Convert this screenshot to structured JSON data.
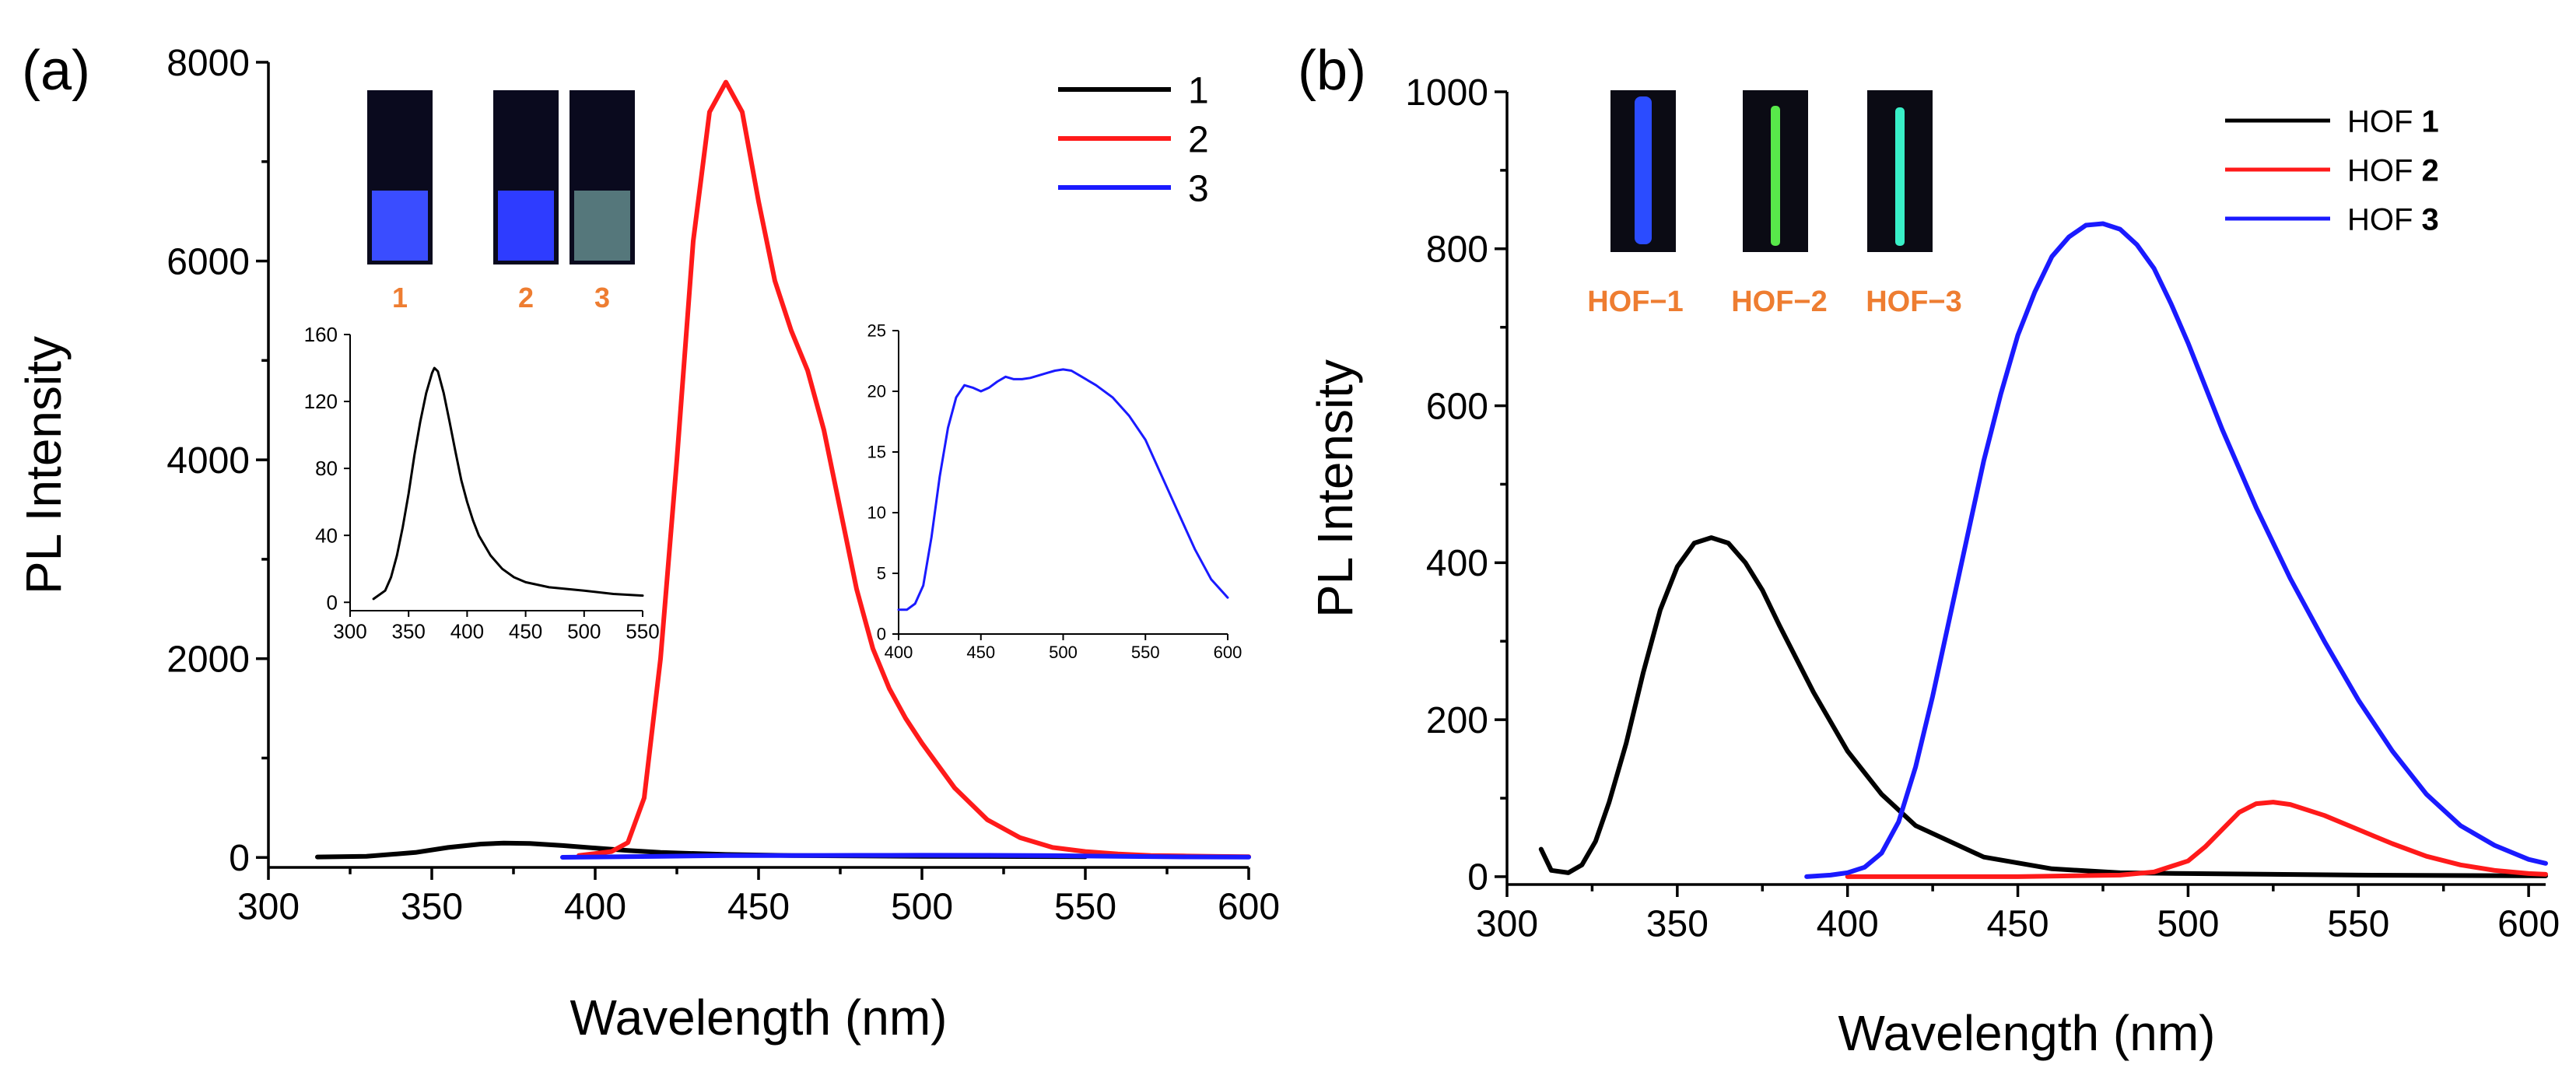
{
  "colors": {
    "black": "#000000",
    "red": "#ff1a1a",
    "blue": "#1a1aff",
    "orange": "#ee7d31"
  },
  "panel_a": {
    "label": "(a)",
    "photo_labels": [
      "1",
      "2",
      "3"
    ],
    "photo_colors": [
      "#3a4dff",
      "#2e3cff",
      "#9fe3d8"
    ]
  },
  "panel_b": {
    "label": "(b)",
    "photo_labels": [
      "HOF−1",
      "HOF−2",
      "HOF−3"
    ],
    "photo_colors": [
      "#2b4cff",
      "#58e84a",
      "#39f0c8"
    ]
  },
  "chart_data": [
    {
      "id": "a_main",
      "type": "line",
      "xlabel": "Wavelength (nm)",
      "ylabel": "PL Intensity",
      "xlim": [
        300,
        600
      ],
      "ylim": [
        -100,
        8000
      ],
      "xticks": [
        300,
        350,
        400,
        450,
        500,
        550,
        600
      ],
      "yticks": [
        0,
        2000,
        4000,
        6000,
        8000
      ],
      "legend": "top-right",
      "series": [
        {
          "name": "1",
          "color": "#000000",
          "x": [
            315,
            330,
            345,
            355,
            365,
            372,
            380,
            390,
            400,
            410,
            420,
            440,
            460,
            480,
            500,
            520,
            550
          ],
          "y": [
            5,
            12,
            50,
            100,
            135,
            145,
            140,
            120,
            95,
            70,
            50,
            30,
            20,
            15,
            12,
            10,
            8
          ]
        },
        {
          "name": "2",
          "color": "#ff1a1a",
          "x": [
            395,
            405,
            410,
            415,
            420,
            425,
            430,
            435,
            440,
            445,
            450,
            455,
            460,
            465,
            470,
            475,
            480,
            485,
            490,
            495,
            500,
            510,
            520,
            530,
            540,
            550,
            560,
            570,
            580,
            590,
            600
          ],
          "y": [
            20,
            60,
            150,
            600,
            2000,
            4000,
            6200,
            7500,
            7800,
            7500,
            6600,
            5800,
            5300,
            4900,
            4300,
            3500,
            2700,
            2100,
            1700,
            1400,
            1150,
            700,
            380,
            200,
            100,
            60,
            35,
            20,
            15,
            10,
            8
          ]
        },
        {
          "name": "3",
          "color": "#1a1aff",
          "x": [
            390,
            400,
            420,
            440,
            460,
            480,
            500,
            520,
            540,
            560,
            580,
            600
          ],
          "y": [
            2,
            5,
            12,
            20,
            20,
            21,
            22,
            21,
            18,
            12,
            6,
            3
          ]
        }
      ]
    },
    {
      "id": "a_inset1",
      "type": "line",
      "xlim": [
        300,
        550
      ],
      "ylim": [
        -5,
        160
      ],
      "xticks": [
        300,
        350,
        400,
        450,
        500,
        550
      ],
      "yticks": [
        0,
        40,
        80,
        120,
        160
      ],
      "series": [
        {
          "name": "1",
          "color": "#000000",
          "x": [
            320,
            330,
            335,
            340,
            345,
            350,
            355,
            360,
            365,
            370,
            372,
            375,
            380,
            385,
            390,
            395,
            400,
            405,
            410,
            420,
            430,
            440,
            450,
            470,
            500,
            525,
            550
          ],
          "y": [
            2,
            7,
            15,
            28,
            45,
            65,
            88,
            108,
            125,
            137,
            140,
            138,
            125,
            108,
            90,
            73,
            60,
            49,
            40,
            28,
            20,
            15,
            12,
            9,
            7,
            5,
            4
          ]
        }
      ]
    },
    {
      "id": "a_inset2",
      "type": "line",
      "xlim": [
        400,
        600
      ],
      "ylim": [
        0,
        25
      ],
      "xticks": [
        400,
        450,
        500,
        550,
        600
      ],
      "yticks": [
        0,
        5,
        10,
        15,
        20,
        25
      ],
      "series": [
        {
          "name": "3",
          "color": "#1a1aff",
          "x": [
            400,
            405,
            410,
            415,
            420,
            425,
            430,
            435,
            440,
            445,
            450,
            455,
            460,
            465,
            470,
            475,
            480,
            485,
            490,
            495,
            500,
            505,
            510,
            520,
            530,
            540,
            550,
            560,
            570,
            580,
            590,
            600
          ],
          "y": [
            2,
            2,
            2.5,
            4,
            8,
            13,
            17,
            19.5,
            20.5,
            20.3,
            20,
            20.3,
            20.8,
            21.2,
            21,
            21,
            21.1,
            21.3,
            21.5,
            21.7,
            21.8,
            21.7,
            21.3,
            20.5,
            19.5,
            18,
            16,
            13,
            10,
            7,
            4.5,
            3
          ]
        }
      ]
    },
    {
      "id": "b_main",
      "type": "line",
      "xlabel": "Wavelength (nm)",
      "ylabel": "PL Intensity",
      "xlim": [
        300,
        605
      ],
      "ylim": [
        -10,
        1000
      ],
      "xticks": [
        300,
        350,
        400,
        450,
        500,
        550,
        600
      ],
      "yticks": [
        0,
        200,
        400,
        600,
        800,
        1000
      ],
      "legend": "top-right",
      "series": [
        {
          "name": "HOF 1",
          "color": "#000000",
          "x": [
            310,
            313,
            318,
            322,
            326,
            330,
            335,
            340,
            345,
            350,
            355,
            360,
            365,
            370,
            375,
            380,
            390,
            400,
            410,
            420,
            440,
            460,
            480,
            500,
            550,
            605
          ],
          "y": [
            35,
            8,
            5,
            15,
            45,
            95,
            170,
            260,
            340,
            395,
            425,
            432,
            425,
            400,
            365,
            320,
            235,
            160,
            105,
            65,
            25,
            10,
            5,
            4,
            2,
            1
          ]
        },
        {
          "name": "HOF 2",
          "color": "#ff1a1a",
          "x": [
            400,
            450,
            480,
            490,
            500,
            505,
            510,
            515,
            520,
            525,
            530,
            540,
            550,
            560,
            570,
            580,
            590,
            600,
            605
          ],
          "y": [
            0,
            0,
            2,
            6,
            20,
            38,
            60,
            82,
            93,
            95,
            92,
            78,
            60,
            42,
            26,
            15,
            8,
            4,
            3
          ]
        },
        {
          "name": "HOF 3",
          "color": "#1a1aff",
          "x": [
            388,
            395,
            400,
            405,
            410,
            415,
            420,
            425,
            430,
            435,
            440,
            445,
            450,
            455,
            460,
            465,
            470,
            475,
            480,
            485,
            490,
            495,
            500,
            510,
            520,
            530,
            540,
            550,
            560,
            570,
            580,
            590,
            600,
            605
          ],
          "y": [
            0,
            2,
            5,
            12,
            30,
            70,
            140,
            230,
            330,
            430,
            530,
            615,
            690,
            745,
            790,
            815,
            830,
            832,
            825,
            805,
            775,
            730,
            680,
            570,
            470,
            380,
            300,
            225,
            160,
            105,
            65,
            40,
            22,
            17
          ]
        }
      ]
    }
  ]
}
